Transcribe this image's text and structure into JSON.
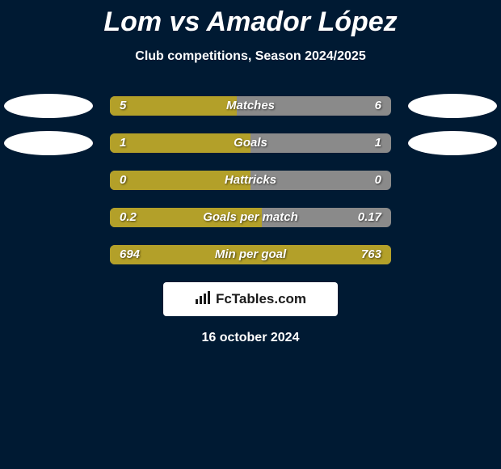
{
  "colors": {
    "page_bg": "#001a33",
    "text": "#ffffff",
    "ellipse": "#ffffff",
    "bar_bg": "#8a8a8a",
    "bar_left": "#b3a029",
    "bar_right": "#b3a029",
    "logo_bg": "#ffffff",
    "logo_text": "#1a1a1a"
  },
  "title": "Lom vs Amador López",
  "subtitle": "Club competitions, Season 2024/2025",
  "stats": [
    {
      "label": "Matches",
      "left_val": "5",
      "right_val": "6",
      "left_pct": 45,
      "right_pct": 0,
      "show_ellipses": true
    },
    {
      "label": "Goals",
      "left_val": "1",
      "right_val": "1",
      "left_pct": 50,
      "right_pct": 0,
      "show_ellipses": true
    },
    {
      "label": "Hattricks",
      "left_val": "0",
      "right_val": "0",
      "left_pct": 50,
      "right_pct": 0,
      "show_ellipses": false
    },
    {
      "label": "Goals per match",
      "left_val": "0.2",
      "right_val": "0.17",
      "left_pct": 54,
      "right_pct": 0,
      "show_ellipses": false
    },
    {
      "label": "Min per goal",
      "left_val": "694",
      "right_val": "763",
      "left_pct": 48,
      "right_pct": 52,
      "show_ellipses": false
    }
  ],
  "logo": {
    "icon": "📊",
    "text": "FcTables.com"
  },
  "date": "16 october 2024",
  "fonts": {
    "title_size": 34,
    "subtitle_size": 16,
    "stat_size": 15,
    "date_size": 16
  }
}
